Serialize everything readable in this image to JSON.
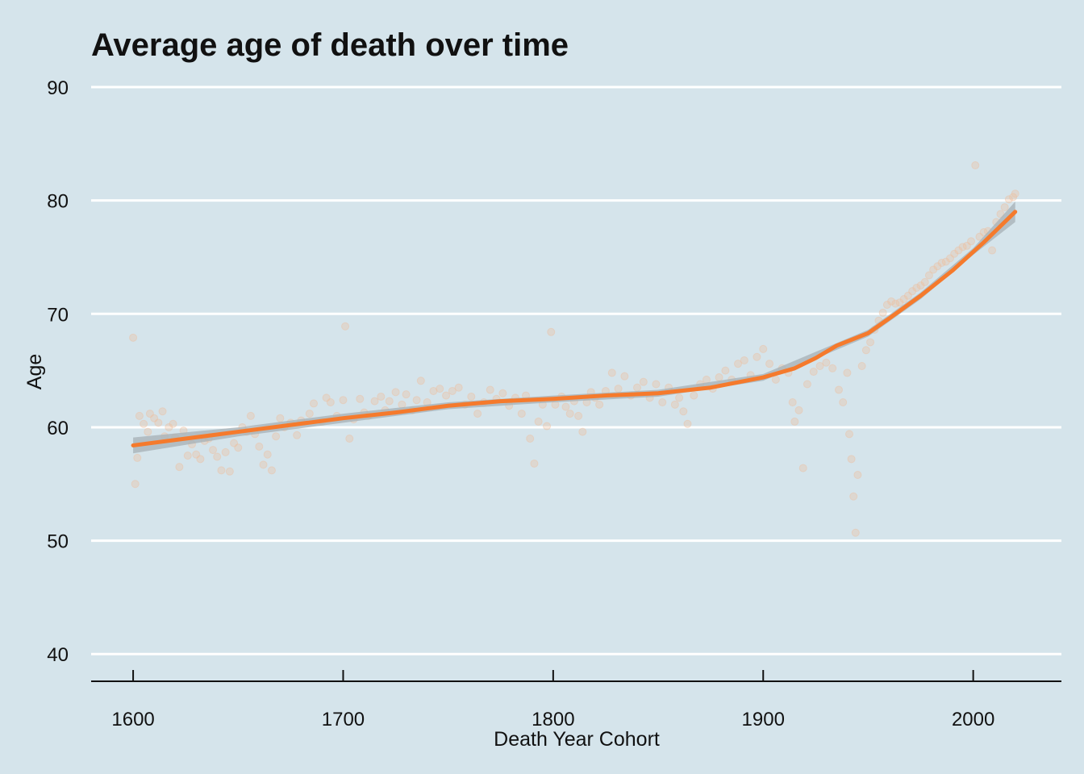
{
  "colors": {
    "background": "#d5e4eb",
    "grid": "#ffffff",
    "trend": "#f57a2c",
    "points": "#eebf9f",
    "band": "#a6b0b5"
  },
  "chart_data": {
    "type": "scatter",
    "title": "Average age of death over time",
    "xlabel": "Death Year Cohort",
    "ylabel": "Age",
    "xlim": [
      1580,
      2042
    ],
    "ylim": [
      37.6,
      90
    ],
    "x_ticks": [
      1600,
      1700,
      1800,
      1900,
      2000
    ],
    "y_ticks": [
      40,
      50,
      60,
      70,
      80,
      90
    ],
    "grid": "horizontal",
    "series": [
      {
        "type": "scatter",
        "points": [
          [
            1600,
            67.9
          ],
          [
            1601,
            55.0
          ],
          [
            1602,
            57.3
          ],
          [
            1603,
            61.0
          ],
          [
            1605,
            60.3
          ],
          [
            1607,
            59.6
          ],
          [
            1608,
            61.2
          ],
          [
            1610,
            60.8
          ],
          [
            1612,
            60.4
          ],
          [
            1614,
            61.4
          ],
          [
            1615,
            59.2
          ],
          [
            1617,
            60.0
          ],
          [
            1619,
            60.3
          ],
          [
            1620,
            59.1
          ],
          [
            1622,
            56.5
          ],
          [
            1624,
            59.7
          ],
          [
            1626,
            57.5
          ],
          [
            1628,
            58.5
          ],
          [
            1630,
            57.6
          ],
          [
            1632,
            57.2
          ],
          [
            1634,
            58.8
          ],
          [
            1636,
            59.0
          ],
          [
            1638,
            58.0
          ],
          [
            1640,
            57.4
          ],
          [
            1642,
            56.2
          ],
          [
            1644,
            57.8
          ],
          [
            1646,
            56.1
          ],
          [
            1648,
            58.6
          ],
          [
            1650,
            58.2
          ],
          [
            1652,
            60.0
          ],
          [
            1654,
            59.6
          ],
          [
            1656,
            61.0
          ],
          [
            1658,
            59.4
          ],
          [
            1660,
            58.3
          ],
          [
            1662,
            56.7
          ],
          [
            1664,
            57.6
          ],
          [
            1666,
            56.2
          ],
          [
            1668,
            59.2
          ],
          [
            1670,
            60.8
          ],
          [
            1672,
            60.0
          ],
          [
            1675,
            60.4
          ],
          [
            1678,
            59.3
          ],
          [
            1680,
            60.6
          ],
          [
            1684,
            61.2
          ],
          [
            1686,
            62.1
          ],
          [
            1690,
            60.5
          ],
          [
            1692,
            62.6
          ],
          [
            1694,
            62.2
          ],
          [
            1697,
            61.0
          ],
          [
            1700,
            62.4
          ],
          [
            1701,
            68.9
          ],
          [
            1703,
            59.0
          ],
          [
            1705,
            60.7
          ],
          [
            1708,
            62.5
          ],
          [
            1710,
            61.3
          ],
          [
            1712,
            61.0
          ],
          [
            1715,
            62.3
          ],
          [
            1718,
            62.7
          ],
          [
            1720,
            61.5
          ],
          [
            1722,
            62.3
          ],
          [
            1725,
            63.1
          ],
          [
            1728,
            62.0
          ],
          [
            1730,
            62.9
          ],
          [
            1733,
            61.5
          ],
          [
            1735,
            62.4
          ],
          [
            1737,
            64.1
          ],
          [
            1740,
            62.2
          ],
          [
            1743,
            63.2
          ],
          [
            1746,
            63.4
          ],
          [
            1749,
            62.8
          ],
          [
            1752,
            63.2
          ],
          [
            1755,
            63.5
          ],
          [
            1758,
            62.0
          ],
          [
            1761,
            62.7
          ],
          [
            1764,
            61.2
          ],
          [
            1767,
            62.2
          ],
          [
            1770,
            63.3
          ],
          [
            1773,
            62.5
          ],
          [
            1776,
            63.0
          ],
          [
            1779,
            61.9
          ],
          [
            1782,
            62.6
          ],
          [
            1785,
            61.2
          ],
          [
            1787,
            62.8
          ],
          [
            1789,
            59.0
          ],
          [
            1791,
            56.8
          ],
          [
            1793,
            60.5
          ],
          [
            1795,
            62.0
          ],
          [
            1797,
            60.1
          ],
          [
            1799,
            68.4
          ],
          [
            1801,
            62.0
          ],
          [
            1804,
            62.7
          ],
          [
            1806,
            61.8
          ],
          [
            1808,
            61.2
          ],
          [
            1810,
            62.3
          ],
          [
            1812,
            61.0
          ],
          [
            1814,
            59.6
          ],
          [
            1816,
            62.2
          ],
          [
            1818,
            63.1
          ],
          [
            1820,
            62.6
          ],
          [
            1822,
            62.0
          ],
          [
            1825,
            63.2
          ],
          [
            1828,
            64.8
          ],
          [
            1831,
            63.4
          ],
          [
            1834,
            64.5
          ],
          [
            1837,
            62.8
          ],
          [
            1840,
            63.5
          ],
          [
            1843,
            64.0
          ],
          [
            1846,
            62.6
          ],
          [
            1849,
            63.8
          ],
          [
            1852,
            62.2
          ],
          [
            1855,
            63.5
          ],
          [
            1858,
            62.0
          ],
          [
            1860,
            62.6
          ],
          [
            1862,
            61.4
          ],
          [
            1864,
            60.3
          ],
          [
            1867,
            62.8
          ],
          [
            1870,
            63.8
          ],
          [
            1873,
            64.2
          ],
          [
            1876,
            63.4
          ],
          [
            1879,
            64.4
          ],
          [
            1882,
            65.0
          ],
          [
            1885,
            64.2
          ],
          [
            1888,
            65.6
          ],
          [
            1891,
            65.9
          ],
          [
            1894,
            64.6
          ],
          [
            1897,
            66.2
          ],
          [
            1900,
            66.9
          ],
          [
            1903,
            65.6
          ],
          [
            1906,
            64.2
          ],
          [
            1909,
            65.2
          ],
          [
            1912,
            64.8
          ],
          [
            1914,
            62.2
          ],
          [
            1915,
            60.5
          ],
          [
            1917,
            61.5
          ],
          [
            1919,
            56.4
          ],
          [
            1921,
            63.8
          ],
          [
            1924,
            64.9
          ],
          [
            1927,
            65.4
          ],
          [
            1930,
            65.7
          ],
          [
            1933,
            65.2
          ],
          [
            1936,
            63.3
          ],
          [
            1938,
            62.2
          ],
          [
            1940,
            64.8
          ],
          [
            1941,
            59.4
          ],
          [
            1942,
            57.2
          ],
          [
            1943,
            53.9
          ],
          [
            1944,
            50.7
          ],
          [
            1945,
            55.8
          ],
          [
            1947,
            65.4
          ],
          [
            1949,
            66.8
          ],
          [
            1951,
            67.5
          ],
          [
            1953,
            68.6
          ],
          [
            1955,
            69.4
          ],
          [
            1957,
            70.1
          ],
          [
            1959,
            70.8
          ],
          [
            1961,
            71.1
          ],
          [
            1963,
            70.9
          ],
          [
            1965,
            71.0
          ],
          [
            1967,
            71.3
          ],
          [
            1969,
            71.6
          ],
          [
            1971,
            72.0
          ],
          [
            1973,
            72.3
          ],
          [
            1975,
            72.5
          ],
          [
            1977,
            72.8
          ],
          [
            1979,
            73.4
          ],
          [
            1981,
            73.9
          ],
          [
            1983,
            74.2
          ],
          [
            1985,
            74.5
          ],
          [
            1987,
            74.6
          ],
          [
            1989,
            74.9
          ],
          [
            1991,
            75.3
          ],
          [
            1993,
            75.6
          ],
          [
            1995,
            75.9
          ],
          [
            1997,
            76.0
          ],
          [
            1999,
            76.4
          ],
          [
            2001,
            83.1
          ],
          [
            2003,
            76.8
          ],
          [
            2005,
            77.2
          ],
          [
            2007,
            77.3
          ],
          [
            2009,
            75.6
          ],
          [
            2011,
            78.1
          ],
          [
            2013,
            78.8
          ],
          [
            2015,
            79.4
          ],
          [
            2017,
            80.1
          ],
          [
            2019,
            80.3
          ],
          [
            2020,
            80.6
          ]
        ]
      },
      {
        "type": "line",
        "points": [
          [
            1600,
            58.4
          ],
          [
            1625,
            59.0
          ],
          [
            1650,
            59.6
          ],
          [
            1675,
            60.2
          ],
          [
            1700,
            60.8
          ],
          [
            1725,
            61.3
          ],
          [
            1750,
            61.9
          ],
          [
            1775,
            62.3
          ],
          [
            1800,
            62.5
          ],
          [
            1825,
            62.8
          ],
          [
            1850,
            63.0
          ],
          [
            1875,
            63.5
          ],
          [
            1900,
            64.4
          ],
          [
            1915,
            65.2
          ],
          [
            1925,
            66.1
          ],
          [
            1935,
            67.2
          ],
          [
            1950,
            68.3
          ],
          [
            1960,
            69.6
          ],
          [
            1975,
            71.6
          ],
          [
            1990,
            73.8
          ],
          [
            2005,
            76.3
          ],
          [
            2020,
            79.0
          ]
        ],
        "band": [
          [
            1600,
            57.7,
            59.1
          ],
          [
            1650,
            59.2,
            60.0
          ],
          [
            1700,
            60.4,
            61.2
          ],
          [
            1750,
            61.6,
            62.2
          ],
          [
            1800,
            62.2,
            62.8
          ],
          [
            1850,
            62.7,
            63.3
          ],
          [
            1900,
            64.1,
            64.7
          ],
          [
            1950,
            68.0,
            68.6
          ],
          [
            1975,
            71.3,
            71.9
          ],
          [
            2000,
            75.2,
            75.8
          ],
          [
            2020,
            78.1,
            79.9
          ]
        ]
      }
    ]
  }
}
